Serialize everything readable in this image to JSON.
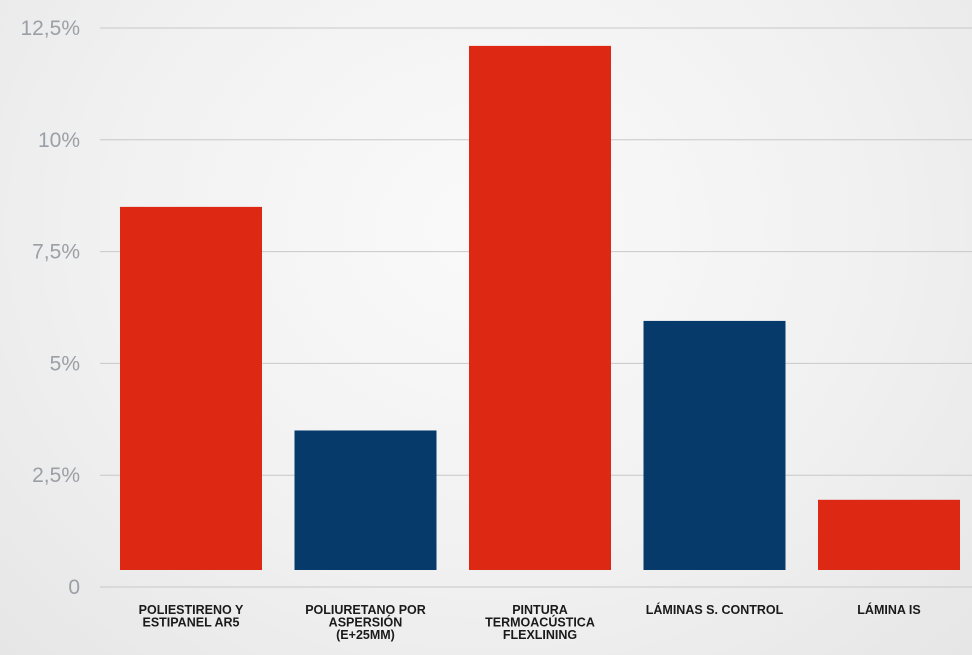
{
  "chart_data": {
    "type": "bar",
    "categories": [
      [
        "POLIESTIRENO Y",
        "ESTIPANEL AR5"
      ],
      [
        "POLIURETANO POR",
        "ASPERSIÓN",
        "(E+25MM)"
      ],
      [
        "PINTURA",
        "TERMOACÚSTICA",
        "FLEXLINING"
      ],
      [
        "LÁMINAS S. CONTROL"
      ],
      [
        "LÁMINA IS"
      ]
    ],
    "values": [
      8.5,
      3.5,
      12.1,
      5.95,
      1.95
    ],
    "colors": [
      "#dd2814",
      "#063a6b",
      "#dd2814",
      "#063a6b",
      "#dd2814"
    ],
    "ylim": [
      0,
      12.5
    ],
    "yticks": [
      0,
      2.5,
      5,
      7.5,
      10,
      12.5
    ],
    "ytick_labels": [
      "0",
      "2,5%",
      "5%",
      "7,5%",
      "10%",
      "12,5%"
    ],
    "grid": true,
    "title": "",
    "xlabel": "",
    "ylabel": ""
  }
}
